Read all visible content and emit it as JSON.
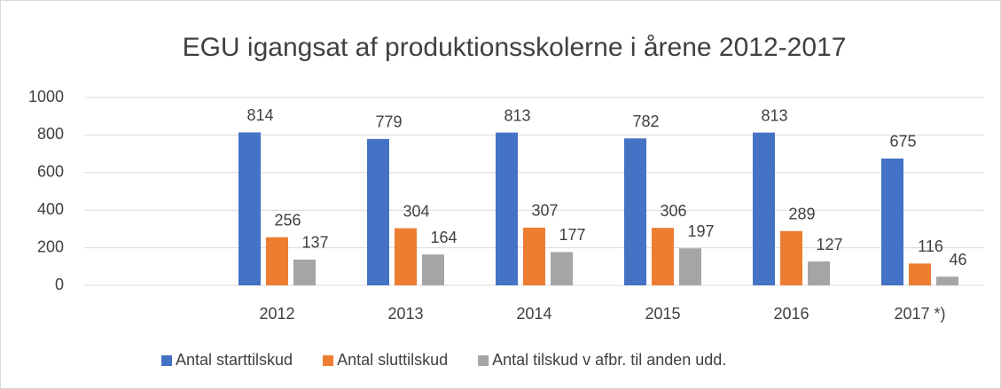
{
  "chart_data": {
    "type": "bar",
    "title": "EGU igangsat af produktionsskolerne i årene 2012-2017",
    "categories": [
      null,
      "2012",
      "2013",
      "2014",
      "2015",
      "2016",
      "2017 *)"
    ],
    "series": [
      {
        "name": "Antal starttilskud",
        "color": "#4472c4",
        "values": [
          null,
          814,
          779,
          813,
          782,
          813,
          675
        ]
      },
      {
        "name": "Antal sluttilskud",
        "color": "#ed7d31",
        "values": [
          null,
          256,
          304,
          307,
          306,
          289,
          116
        ]
      },
      {
        "name": "Antal tilskud v afbr. til anden udd.",
        "color": "#a5a5a5",
        "values": [
          null,
          137,
          164,
          177,
          197,
          127,
          46
        ]
      }
    ],
    "ylim": [
      0,
      1000
    ],
    "yticks": [
      0,
      200,
      400,
      600,
      800,
      1000
    ],
    "grid": true,
    "legend": "bottom"
  }
}
